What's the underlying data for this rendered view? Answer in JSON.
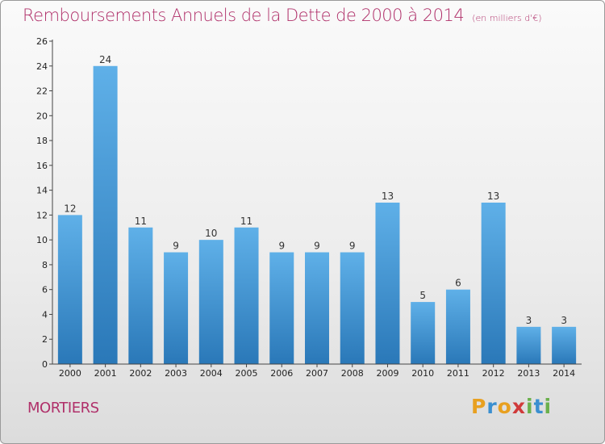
{
  "title": "Remboursements Annuels de la Dette de 2000 à 2014",
  "subtitle": "(en milliers d'€)",
  "commune": "MORTIERS",
  "logo": {
    "letters": [
      "P",
      "r",
      "o",
      "x",
      "i",
      "t",
      "i"
    ],
    "colors": [
      "#e8a020",
      "#3a8fd0",
      "#e8a020",
      "#d03a3a",
      "#6ab04c",
      "#3a8fd0",
      "#6ab04c"
    ]
  },
  "colors": {
    "bar_light": "#5fb0e8",
    "bar_dark": "#2a78b8",
    "title": "#b0306a"
  },
  "chart_data": {
    "type": "bar",
    "categories": [
      "2000",
      "2001",
      "2002",
      "2003",
      "2004",
      "2005",
      "2006",
      "2007",
      "2008",
      "2009",
      "2010",
      "2011",
      "2012",
      "2013",
      "2014"
    ],
    "values": [
      12,
      24,
      11,
      9,
      10,
      11,
      9,
      9,
      9,
      13,
      5,
      6,
      13,
      3,
      3
    ],
    "ylim": [
      0,
      26
    ],
    "yticks": [
      0,
      2,
      4,
      6,
      8,
      10,
      12,
      14,
      16,
      18,
      20,
      22,
      24,
      26
    ],
    "grid": false,
    "legend": "none"
  }
}
